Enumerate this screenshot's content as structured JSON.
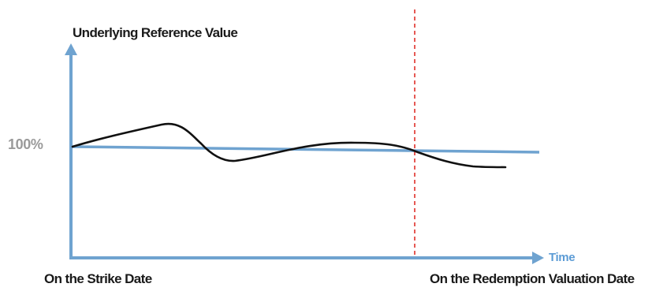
{
  "labels": {
    "y_axis": "Underlying Reference Value",
    "x_axis": "Time",
    "reference_level": "100%",
    "start_date": "On the Strike Date",
    "end_date": "On the Redemption Valuation Date"
  },
  "colors": {
    "axis": "#6fa3d0",
    "reference_line": "#6fa3d0",
    "value_curve": "#111111",
    "valuation_marker": "#e0302a",
    "reference_label": "#9a9a9a",
    "time_label": "#5b9bd5",
    "text": "#1a1a1a"
  }
}
